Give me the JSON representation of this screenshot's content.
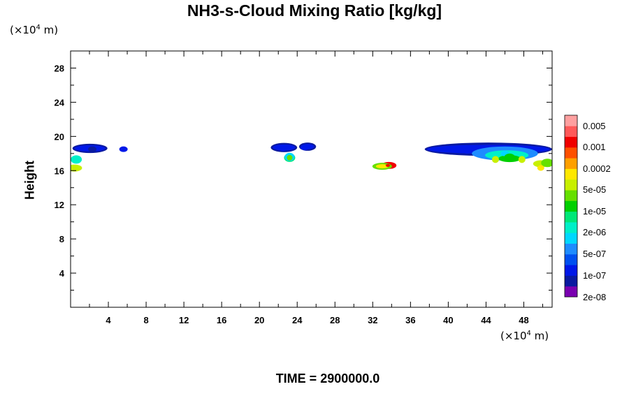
{
  "chart_data": {
    "type": "heatmap",
    "title": "NH3-s-Cloud Mixing Ratio [kg/kg]",
    "xlabel": "",
    "ylabel": "Height",
    "x_unit": "(×10⁴ m)",
    "y_unit": "(×10⁴ m)",
    "xlim": [
      0,
      51
    ],
    "ylim": [
      0,
      30
    ],
    "x_ticks": [
      4,
      8,
      12,
      16,
      20,
      24,
      28,
      32,
      36,
      40,
      44,
      48
    ],
    "y_ticks": [
      4,
      8,
      12,
      16,
      20,
      24,
      28
    ],
    "grid": false,
    "footer": "TIME = 2900000.0",
    "colorbar": {
      "labels": [
        "0.005",
        "0.001",
        "0.0002",
        "5e-05",
        "1e-05",
        "2e-06",
        "5e-07",
        "1e-07",
        "2e-08"
      ],
      "colors": [
        "#7a00b0",
        "#0a1aa0",
        "#0018e8",
        "#0050f0",
        "#1e8cff",
        "#00d8ff",
        "#00f0c8",
        "#00e878",
        "#00d000",
        "#66e000",
        "#c8f000",
        "#ffe800",
        "#ffa000",
        "#ff5000",
        "#f00000",
        "#ff5a5a",
        "#ffa0a0"
      ]
    },
    "cloud_patches": [
      {
        "x": 2.3,
        "y": 18.5,
        "level": 1
      },
      {
        "x": 0.6,
        "y": 17.3,
        "level": 6
      },
      {
        "x": 0.4,
        "y": 16.3,
        "level": 10
      },
      {
        "x": 5.6,
        "y": 18.5,
        "level": 2
      },
      {
        "x": 22.5,
        "y": 18.6,
        "level": 2
      },
      {
        "x": 23.2,
        "y": 17.5,
        "level": 7
      },
      {
        "x": 24.8,
        "y": 18.7,
        "level": 2
      },
      {
        "x": 33.0,
        "y": 16.5,
        "level": 11
      },
      {
        "x": 33.7,
        "y": 16.6,
        "level": 14
      },
      {
        "x": 42.0,
        "y": 18.3,
        "level": 2
      },
      {
        "x": 46.0,
        "y": 18.0,
        "level": 5
      },
      {
        "x": 46.5,
        "y": 17.5,
        "level": 8
      },
      {
        "x": 49.8,
        "y": 16.8,
        "level": 10
      }
    ]
  }
}
